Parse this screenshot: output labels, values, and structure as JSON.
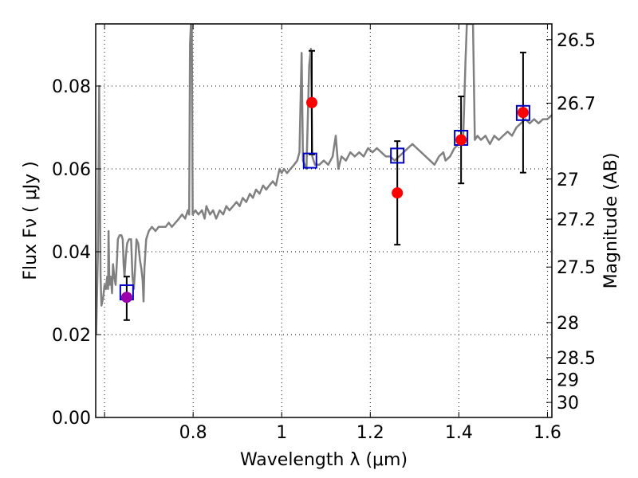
{
  "chart_data": {
    "type": "scatter",
    "title": "",
    "xlabel": "Wavelength  λ (μm)",
    "ylabel": "Flux  Fν  ( μJy )",
    "ylabel_right": "Magnitude (AB)",
    "xlim": [
      0.58,
      1.61
    ],
    "ylim": [
      0.0,
      0.095
    ],
    "grid": true,
    "x_ticks": [
      {
        "value": 0.6,
        "label": ""
      },
      {
        "value": 0.8,
        "label": "0.8"
      },
      {
        "value": 1.0,
        "label": "1"
      },
      {
        "value": 1.2,
        "label": "1.2"
      },
      {
        "value": 1.4,
        "label": "1.4"
      },
      {
        "value": 1.6,
        "label": "1.6"
      }
    ],
    "y_ticks": [
      {
        "value": 0.0,
        "label": "0.00"
      },
      {
        "value": 0.02,
        "label": "0.02"
      },
      {
        "value": 0.04,
        "label": "0.04"
      },
      {
        "value": 0.06,
        "label": "0.06"
      },
      {
        "value": 0.08,
        "label": "0.08"
      }
    ],
    "magnitude_ticks": [
      {
        "value": 26.5,
        "label": "26.5"
      },
      {
        "value": 26.7,
        "label": "26.7"
      },
      {
        "value": 27.0,
        "label": "27"
      },
      {
        "value": 27.2,
        "label": "27.2"
      },
      {
        "value": 27.5,
        "label": "27.5"
      },
      {
        "value": 28.0,
        "label": "28"
      },
      {
        "value": 28.5,
        "label": "28.5"
      },
      {
        "value": 29.0,
        "label": "29"
      },
      {
        "value": 30.0,
        "label": "30"
      }
    ],
    "series": [
      {
        "kind": "line",
        "color": "#808080",
        "points": [
          [
            0.581,
            0.02
          ],
          [
            0.585,
            0.04
          ],
          [
            0.588,
            0.08
          ],
          [
            0.591,
            0.034
          ],
          [
            0.593,
            0.027
          ],
          [
            0.597,
            0.029
          ],
          [
            0.6,
            0.032
          ],
          [
            0.603,
            0.031
          ],
          [
            0.606,
            0.034
          ],
          [
            0.608,
            0.031
          ],
          [
            0.609,
            0.045
          ],
          [
            0.611,
            0.032
          ],
          [
            0.614,
            0.034
          ],
          [
            0.617,
            0.03
          ],
          [
            0.619,
            0.037
          ],
          [
            0.622,
            0.034
          ],
          [
            0.625,
            0.032
          ],
          [
            0.628,
            0.038
          ],
          [
            0.63,
            0.043
          ],
          [
            0.634,
            0.044
          ],
          [
            0.638,
            0.044
          ],
          [
            0.641,
            0.043
          ],
          [
            0.643,
            0.037
          ],
          [
            0.645,
            0.034
          ],
          [
            0.648,
            0.039
          ],
          [
            0.651,
            0.042
          ],
          [
            0.655,
            0.043
          ],
          [
            0.66,
            0.043
          ],
          [
            0.663,
            0.034
          ],
          [
            0.666,
            0.031
          ],
          [
            0.669,
            0.036
          ],
          [
            0.672,
            0.043
          ],
          [
            0.676,
            0.042
          ],
          [
            0.68,
            0.038
          ],
          [
            0.683,
            0.036
          ],
          [
            0.686,
            0.033
          ],
          [
            0.688,
            0.028
          ],
          [
            0.69,
            0.036
          ],
          [
            0.694,
            0.043
          ],
          [
            0.7,
            0.045
          ],
          [
            0.707,
            0.046
          ],
          [
            0.715,
            0.045
          ],
          [
            0.722,
            0.046
          ],
          [
            0.73,
            0.046
          ],
          [
            0.738,
            0.046
          ],
          [
            0.745,
            0.047
          ],
          [
            0.752,
            0.046
          ],
          [
            0.76,
            0.047
          ],
          [
            0.768,
            0.048
          ],
          [
            0.775,
            0.049
          ],
          [
            0.782,
            0.048
          ],
          [
            0.788,
            0.05
          ],
          [
            0.791,
            0.049
          ],
          [
            0.793,
            0.09
          ],
          [
            0.795,
            0.095
          ],
          [
            0.797,
            0.095
          ],
          [
            0.799,
            0.049
          ],
          [
            0.805,
            0.05
          ],
          [
            0.812,
            0.049
          ],
          [
            0.82,
            0.05
          ],
          [
            0.826,
            0.048
          ],
          [
            0.83,
            0.051
          ],
          [
            0.838,
            0.049
          ],
          [
            0.845,
            0.05
          ],
          [
            0.852,
            0.048
          ],
          [
            0.86,
            0.05
          ],
          [
            0.868,
            0.049
          ],
          [
            0.875,
            0.051
          ],
          [
            0.882,
            0.05
          ],
          [
            0.89,
            0.051
          ],
          [
            0.898,
            0.052
          ],
          [
            0.905,
            0.051
          ],
          [
            0.912,
            0.053
          ],
          [
            0.92,
            0.052
          ],
          [
            0.928,
            0.054
          ],
          [
            0.935,
            0.053
          ],
          [
            0.942,
            0.055
          ],
          [
            0.95,
            0.054
          ],
          [
            0.958,
            0.056
          ],
          [
            0.965,
            0.055
          ],
          [
            0.972,
            0.056
          ],
          [
            0.98,
            0.057
          ],
          [
            0.987,
            0.056
          ],
          [
            0.995,
            0.06
          ],
          [
            1.0,
            0.059
          ],
          [
            1.005,
            0.06
          ],
          [
            1.012,
            0.059
          ],
          [
            1.02,
            0.06
          ],
          [
            1.028,
            0.061
          ],
          [
            1.035,
            0.062
          ],
          [
            1.04,
            0.064
          ],
          [
            1.045,
            0.088
          ],
          [
            1.048,
            0.062
          ],
          [
            1.052,
            0.061
          ],
          [
            1.056,
            0.06
          ],
          [
            1.062,
            0.085
          ],
          [
            1.066,
            0.089
          ],
          [
            1.069,
            0.063
          ],
          [
            1.075,
            0.061
          ],
          [
            1.085,
            0.061
          ],
          [
            1.095,
            0.062
          ],
          [
            1.105,
            0.061
          ],
          [
            1.115,
            0.063
          ],
          [
            1.122,
            0.068
          ],
          [
            1.128,
            0.06
          ],
          [
            1.135,
            0.063
          ],
          [
            1.145,
            0.062
          ],
          [
            1.155,
            0.064
          ],
          [
            1.165,
            0.063
          ],
          [
            1.175,
            0.064
          ],
          [
            1.185,
            0.063
          ],
          [
            1.195,
            0.065
          ],
          [
            1.205,
            0.064
          ],
          [
            1.215,
            0.065
          ],
          [
            1.225,
            0.064
          ],
          [
            1.235,
            0.063
          ],
          [
            1.245,
            0.063
          ],
          [
            1.255,
            0.062
          ],
          [
            1.265,
            0.063
          ],
          [
            1.275,
            0.064
          ],
          [
            1.285,
            0.065
          ],
          [
            1.295,
            0.066
          ],
          [
            1.305,
            0.065
          ],
          [
            1.315,
            0.064
          ],
          [
            1.325,
            0.063
          ],
          [
            1.335,
            0.062
          ],
          [
            1.345,
            0.061
          ],
          [
            1.355,
            0.063
          ],
          [
            1.365,
            0.064
          ],
          [
            1.37,
            0.062
          ],
          [
            1.38,
            0.063
          ],
          [
            1.39,
            0.065
          ],
          [
            1.4,
            0.066
          ],
          [
            1.405,
            0.067
          ],
          [
            1.41,
            0.068
          ],
          [
            1.415,
            0.086
          ],
          [
            1.418,
            0.095
          ],
          [
            1.42,
            0.095
          ],
          [
            1.428,
            0.095
          ],
          [
            1.432,
            0.095
          ],
          [
            1.436,
            0.067
          ],
          [
            1.442,
            0.068
          ],
          [
            1.45,
            0.067
          ],
          [
            1.46,
            0.068
          ],
          [
            1.47,
            0.066
          ],
          [
            1.48,
            0.068
          ],
          [
            1.49,
            0.067
          ],
          [
            1.5,
            0.068
          ],
          [
            1.51,
            0.069
          ],
          [
            1.52,
            0.068
          ],
          [
            1.53,
            0.07
          ],
          [
            1.54,
            0.071
          ],
          [
            1.55,
            0.072
          ],
          [
            1.56,
            0.071
          ],
          [
            1.57,
            0.072
          ],
          [
            1.58,
            0.071
          ],
          [
            1.59,
            0.072
          ],
          [
            1.6,
            0.072
          ],
          [
            1.61,
            0.073
          ]
        ]
      },
      {
        "kind": "observed_with_error",
        "points": [
          {
            "x": 0.65,
            "y": 0.029,
            "err_lo": 0.0055,
            "err_hi": 0.005,
            "color": "#9900aa"
          },
          {
            "x": 1.068,
            "y": 0.076,
            "err_lo": 0.0125,
            "err_hi": 0.0125,
            "color": "#ff0000"
          },
          {
            "x": 1.261,
            "y": 0.0542,
            "err_lo": 0.0125,
            "err_hi": 0.0125,
            "color": "#ff0000"
          },
          {
            "x": 1.405,
            "y": 0.067,
            "err_lo": 0.0105,
            "err_hi": 0.0105,
            "color": "#ff0000"
          },
          {
            "x": 1.545,
            "y": 0.0736,
            "err_lo": 0.0145,
            "err_hi": 0.0145,
            "color": "#ff0000"
          }
        ]
      },
      {
        "kind": "model_squares",
        "color": "#0000cc",
        "points": [
          {
            "x": 0.65,
            "y": 0.0302
          },
          {
            "x": 1.064,
            "y": 0.062
          },
          {
            "x": 1.261,
            "y": 0.0632
          },
          {
            "x": 1.405,
            "y": 0.0675
          },
          {
            "x": 1.545,
            "y": 0.0735
          }
        ]
      }
    ]
  }
}
